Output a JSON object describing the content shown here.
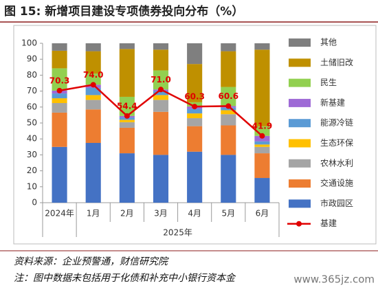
{
  "chart_data": {
    "type": "bar",
    "stacked": true,
    "title": "图 15:  新增项目建设专项债券投向分布（%）",
    "categories": [
      "2024年",
      "1月",
      "2月",
      "3月",
      "4月",
      "5月",
      "6月"
    ],
    "x_group_label": "2025年",
    "ylim": [
      0,
      100
    ],
    "yticks": [
      0,
      10,
      20,
      30,
      40,
      50,
      60,
      70,
      80,
      90,
      100
    ],
    "grid": false,
    "series": [
      {
        "name": "市政园区",
        "color": "#4472c4",
        "values": [
          35,
          37.5,
          31,
          30,
          32,
          30,
          15.5
        ]
      },
      {
        "name": "交通设施",
        "color": "#ed7d31",
        "values": [
          21.5,
          21,
          16,
          27,
          16,
          18.5,
          15.5
        ]
      },
      {
        "name": "农林水利",
        "color": "#a5a5a5",
        "values": [
          6,
          6,
          3.5,
          7.5,
          5,
          7,
          4
        ]
      },
      {
        "name": "生态环保",
        "color": "#ffc000",
        "values": [
          3,
          3,
          1.5,
          3,
          3,
          2.5,
          1.5
        ]
      },
      {
        "name": "能源冷链",
        "color": "#5b9bd5",
        "values": [
          3,
          4.5,
          1.4,
          2.5,
          2.8,
          1.6,
          2
        ]
      },
      {
        "name": "新基建",
        "color": "#9e6ad6",
        "values": [
          1.8,
          2,
          1,
          1,
          1.5,
          1,
          3.4
        ]
      },
      {
        "name": "民生",
        "color": "#92d050",
        "values": [
          14,
          7,
          12,
          12,
          2.7,
          12,
          6
        ]
      },
      {
        "name": "土储旧改",
        "color": "#bf9000",
        "values": [
          11,
          14,
          30,
          13,
          24,
          22.4,
          48.1
        ]
      },
      {
        "name": "其他",
        "color": "#7f7f7f",
        "values": [
          4.7,
          5,
          3.6,
          4,
          13,
          5,
          4
        ]
      },
      {
        "name": "基建",
        "color": "#e00000",
        "kind": "line",
        "values": [
          70.3,
          74.0,
          54.4,
          71.0,
          60.3,
          60.6,
          41.9
        ],
        "value_labels": [
          "70.3",
          "74.0",
          "54.4",
          "71.0",
          "60.3",
          "60.6",
          "41.9"
        ]
      }
    ]
  },
  "footer": {
    "source": "资料来源：企业预警通，财信研究院",
    "note": "注：图中数据未包括用于化债和补充中小银行资本金",
    "watermark": "www.365jz.com"
  }
}
